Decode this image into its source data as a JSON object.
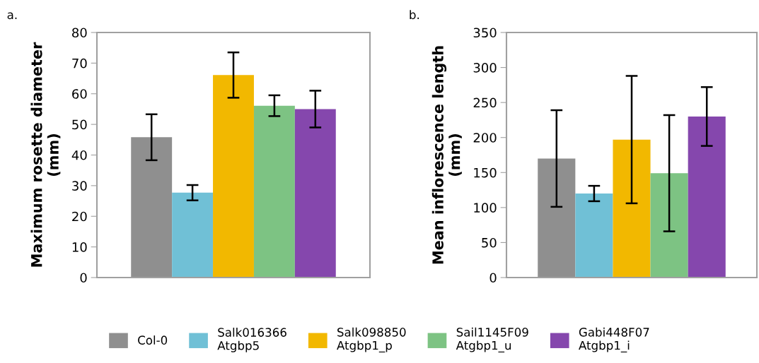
{
  "chart_data": [
    {
      "type": "bar",
      "title": "a.",
      "ylabel": "Maximum rosette diameter\n(mm)",
      "categories": [
        null
      ],
      "ylim": [
        0,
        80
      ],
      "yticks": [
        0,
        10,
        20,
        30,
        40,
        50,
        60,
        70,
        80
      ],
      "grid": false,
      "legend": "bottom",
      "series": [
        {
          "name": "Col-0",
          "color": "#8f8f8f",
          "values": [
            45.8
          ],
          "errors": [
            7.5
          ]
        },
        {
          "name": "Salk016366\nAtgbp5",
          "color": "#70c0d6",
          "values": [
            27.7
          ],
          "errors": [
            2.5
          ]
        },
        {
          "name": "Salk098850\nAtgbp1_p",
          "color": "#f2b800",
          "values": [
            66.1
          ],
          "errors": [
            7.4
          ]
        },
        {
          "name": "Sail1145F09\nAtgbp1_u",
          "color": "#7dc383",
          "values": [
            56.1
          ],
          "errors": [
            3.4
          ]
        },
        {
          "name": "Gabi448F07\nAtgbp1_i",
          "color": "#8547ad",
          "values": [
            55.0
          ],
          "errors": [
            6.0
          ]
        }
      ]
    },
    {
      "type": "bar",
      "title": "b.",
      "ylabel": "Mean inflorescence length\n(mm)",
      "categories": [
        null
      ],
      "ylim": [
        0,
        350
      ],
      "yticks": [
        0,
        50,
        100,
        150,
        200,
        250,
        300,
        350
      ],
      "grid": false,
      "series": [
        {
          "color": "#8f8f8f",
          "values": [
            170
          ],
          "errors": [
            69
          ]
        },
        {
          "color": "#70c0d6",
          "values": [
            120
          ],
          "errors": [
            11
          ]
        },
        {
          "color": "#f2b800",
          "values": [
            197
          ],
          "errors": [
            91
          ]
        },
        {
          "color": "#7dc383",
          "values": [
            149
          ],
          "errors": [
            83
          ]
        },
        {
          "color": "#8547ad",
          "values": [
            230
          ],
          "errors": [
            42
          ]
        }
      ]
    }
  ]
}
